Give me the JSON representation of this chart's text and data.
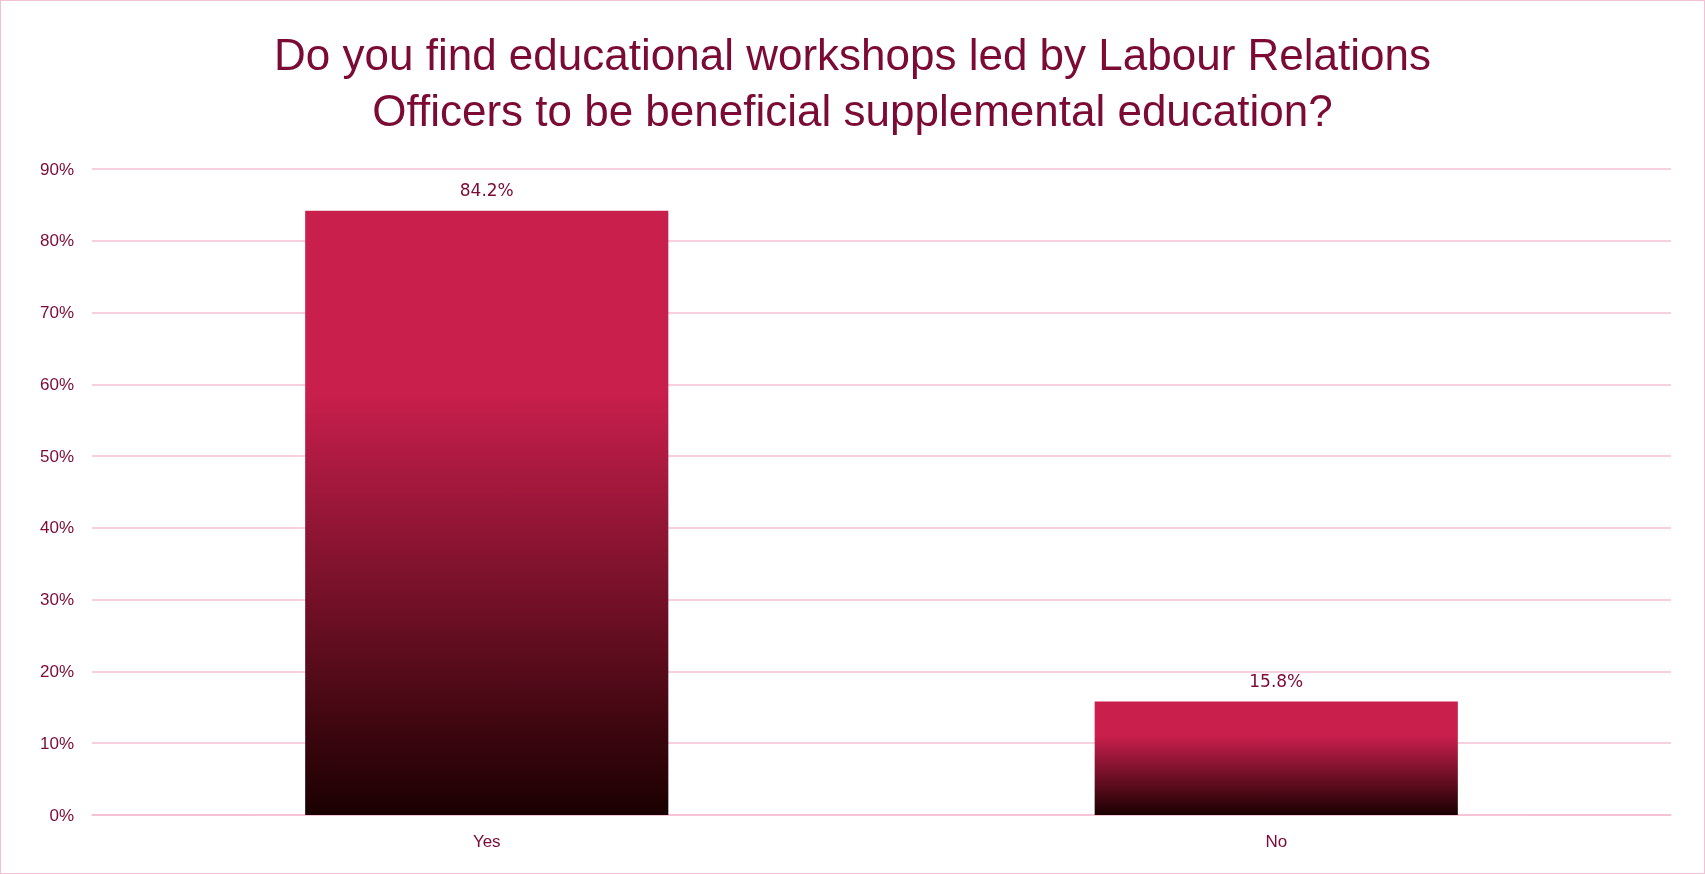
{
  "chart_data": {
    "type": "bar",
    "title": "Do you find educational workshops led by Labour Relations\nOfficers to be beneficial supplemental education?",
    "categories": [
      "Yes",
      "No"
    ],
    "values": [
      84.2,
      15.8
    ],
    "color": "#c91f4d",
    "value_labels": [
      "84.2%",
      "15.8%"
    ],
    "ylim": [
      0,
      90
    ],
    "yticks": [
      {
        "value": 0,
        "label": "0%"
      },
      {
        "value": 10,
        "label": "10%"
      },
      {
        "value": 20,
        "label": "20%"
      },
      {
        "value": 30,
        "label": "30%"
      },
      {
        "value": 40,
        "label": "40%"
      },
      {
        "value": 50,
        "label": "50%"
      },
      {
        "value": 60,
        "label": "60%"
      },
      {
        "value": 70,
        "label": "70%"
      },
      {
        "value": 80,
        "label": "80%"
      },
      {
        "value": 90,
        "label": "90%"
      }
    ],
    "grid": true
  }
}
